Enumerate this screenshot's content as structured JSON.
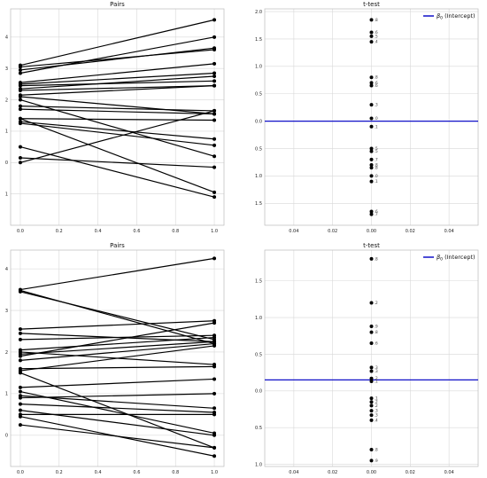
{
  "chart_data": [
    {
      "type": "line",
      "title": "Pairs",
      "xlabel": "",
      "ylabel": "",
      "xlim": [
        -0.05,
        1.05
      ],
      "ylim": [
        -2.0,
        4.9
      ],
      "x_ticks": [
        0.0,
        0.2,
        0.4,
        0.6,
        0.8,
        1.0
      ],
      "x_tick_labels": [
        "0.0",
        "0.2",
        "0.4",
        "0.6",
        "0.8",
        "1.0"
      ],
      "y_ticks": [
        -1,
        0,
        1,
        2,
        3,
        4
      ],
      "y_tick_labels": [
        "1",
        "0",
        "1",
        "2",
        "3",
        "4"
      ],
      "grid": true,
      "pairs": [
        [
          3.1,
          4.55
        ],
        [
          3.05,
          3.6
        ],
        [
          2.95,
          3.65
        ],
        [
          2.85,
          4.0
        ],
        [
          2.55,
          3.15
        ],
        [
          2.5,
          2.85
        ],
        [
          2.45,
          2.6
        ],
        [
          2.35,
          2.75
        ],
        [
          2.3,
          2.45
        ],
        [
          2.15,
          2.45
        ],
        [
          2.1,
          1.55
        ],
        [
          2.0,
          0.2
        ],
        [
          1.8,
          1.65
        ],
        [
          1.7,
          1.55
        ],
        [
          1.4,
          1.35
        ],
        [
          1.4,
          -0.95
        ],
        [
          1.25,
          0.55
        ],
        [
          1.3,
          0.75
        ],
        [
          0.5,
          -1.1
        ],
        [
          0.15,
          -0.15
        ],
        [
          0.0,
          1.65
        ]
      ]
    },
    {
      "type": "scatter",
      "title": "t-test",
      "xlabel": "",
      "ylabel": "",
      "xlim": [
        -0.055,
        0.055
      ],
      "ylim": [
        -1.9,
        2.05
      ],
      "x_ticks": [
        -0.04,
        -0.02,
        0.0,
        0.02,
        0.04
      ],
      "x_tick_labels": [
        "0.04",
        "0.02",
        "0.00",
        "0.02",
        "0.04"
      ],
      "y_ticks": [
        -1.5,
        -1.0,
        -0.5,
        0.0,
        0.5,
        1.0,
        1.5,
        2.0
      ],
      "y_tick_labels": [
        "1.5",
        "1.0",
        "0.5",
        "0.0",
        "0.5",
        "1.0",
        "1.5",
        "2.0"
      ],
      "grid": true,
      "intercept": 0.0,
      "legend": {
        "label_sym": "β",
        "label_sub": "0",
        "label_rest": " (Intercept)",
        "placement": "top-right",
        "color": "#1010c8"
      },
      "points": [
        {
          "y": 1.85,
          "label": ".8"
        },
        {
          "y": 1.62,
          "label": ".6"
        },
        {
          "y": 1.55,
          "label": ".5"
        },
        {
          "y": 1.45,
          "label": ".4"
        },
        {
          "y": 0.8,
          "label": ".8"
        },
        {
          "y": 0.7,
          "label": ".6"
        },
        {
          "y": 0.65,
          "label": ".6"
        },
        {
          "y": 0.3,
          "label": ".3"
        },
        {
          "y": 0.05,
          "label": ".0"
        },
        {
          "y": -0.1,
          "label": ".1"
        },
        {
          "y": -0.5,
          "label": ".5"
        },
        {
          "y": -0.55,
          "label": ".5"
        },
        {
          "y": -0.7,
          "label": ".7"
        },
        {
          "y": -0.8,
          "label": ".8"
        },
        {
          "y": -0.85,
          "label": ".8"
        },
        {
          "y": -1.0,
          "label": ".0"
        },
        {
          "y": -1.1,
          "label": ".1"
        },
        {
          "y": -1.65,
          "label": ".6"
        },
        {
          "y": -1.7,
          "label": ".7"
        }
      ]
    },
    {
      "type": "line",
      "title": "Pairs",
      "xlabel": "",
      "ylabel": "",
      "xlim": [
        -0.05,
        1.05
      ],
      "ylim": [
        -0.75,
        4.45
      ],
      "x_ticks": [
        0.0,
        0.2,
        0.4,
        0.6,
        0.8,
        1.0
      ],
      "x_tick_labels": [
        "0.0",
        "0.2",
        "0.4",
        "0.6",
        "0.8",
        "1.0"
      ],
      "y_ticks": [
        0,
        1,
        2,
        3,
        4
      ],
      "y_tick_labels": [
        "0",
        "1",
        "2",
        "3",
        "4"
      ],
      "grid": true,
      "pairs": [
        [
          3.5,
          4.25
        ],
        [
          3.48,
          2.2
        ],
        [
          3.45,
          2.3
        ],
        [
          2.55,
          2.75
        ],
        [
          2.45,
          2.25
        ],
        [
          2.3,
          2.4
        ],
        [
          2.05,
          2.35
        ],
        [
          2.0,
          1.7
        ],
        [
          1.95,
          2.25
        ],
        [
          1.9,
          2.7
        ],
        [
          1.8,
          2.2
        ],
        [
          1.6,
          1.65
        ],
        [
          1.55,
          2.15
        ],
        [
          1.5,
          -0.3
        ],
        [
          1.15,
          1.35
        ],
        [
          1.05,
          0.05
        ],
        [
          0.95,
          0.65
        ],
        [
          0.9,
          1.0
        ],
        [
          0.75,
          0.55
        ],
        [
          0.6,
          0.0
        ],
        [
          0.5,
          0.5
        ],
        [
          0.45,
          -0.5
        ],
        [
          0.25,
          -0.3
        ]
      ]
    },
    {
      "type": "scatter",
      "title": "t-test",
      "xlabel": "",
      "ylabel": "",
      "xlim": [
        -0.055,
        0.055
      ],
      "ylim": [
        -1.03,
        1.92
      ],
      "x_ticks": [
        -0.04,
        -0.02,
        0.0,
        0.02,
        0.04
      ],
      "x_tick_labels": [
        "0.04",
        "0.02",
        "0.00",
        "0.02",
        "0.04"
      ],
      "y_ticks": [
        -1.0,
        -0.5,
        0.0,
        0.5,
        1.0,
        1.5
      ],
      "y_tick_labels": [
        "1.0",
        "0.5",
        "0.0",
        "0.5",
        "1.0",
        "1.5"
      ],
      "grid": true,
      "intercept": 0.15,
      "legend": {
        "label_sym": "β",
        "label_sub": "0",
        "label_rest": " (Intercept)",
        "placement": "top-right",
        "color": "#1010c8"
      },
      "points": [
        {
          "y": 1.8,
          "label": ".8"
        },
        {
          "y": 1.2,
          "label": ".2"
        },
        {
          "y": 0.88,
          "label": ".9"
        },
        {
          "y": 0.8,
          "label": ".8"
        },
        {
          "y": 0.65,
          "label": ".6"
        },
        {
          "y": 0.32,
          "label": ".3"
        },
        {
          "y": 0.27,
          "label": ".3"
        },
        {
          "y": 0.17,
          "label": ".2"
        },
        {
          "y": 0.13,
          "label": ".1"
        },
        {
          "y": -0.1,
          "label": ".1"
        },
        {
          "y": -0.15,
          "label": ".2"
        },
        {
          "y": -0.2,
          "label": ".2"
        },
        {
          "y": -0.27,
          "label": ".3"
        },
        {
          "y": -0.33,
          "label": ".3"
        },
        {
          "y": -0.4,
          "label": ".4"
        },
        {
          "y": -0.8,
          "label": ".8"
        },
        {
          "y": -0.95,
          "label": ".9"
        }
      ]
    }
  ]
}
